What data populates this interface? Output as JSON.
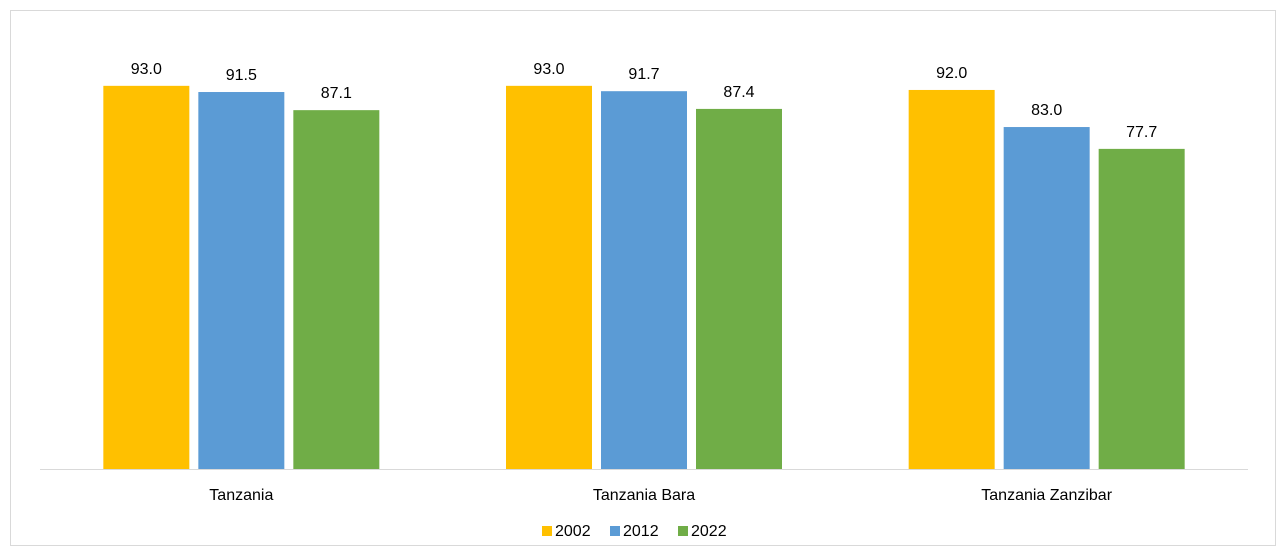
{
  "chart_data": {
    "type": "bar",
    "categories": [
      "Tanzania",
      "Tanzania Bara",
      "Tanzania Zanzibar"
    ],
    "series": [
      {
        "name": "2002",
        "color": "#FFC000",
        "values": [
          93.0,
          93.0,
          92.0
        ]
      },
      {
        "name": "2012",
        "color": "#5B9BD5",
        "values": [
          91.5,
          91.7,
          83.0
        ]
      },
      {
        "name": "2022",
        "color": "#70AD47",
        "values": [
          87.1,
          87.4,
          77.7
        ]
      }
    ],
    "title": "",
    "xlabel": "",
    "ylabel": "",
    "ylim": [
      0,
      100
    ],
    "grid": false,
    "legend_position": "bottom",
    "data_labels": true,
    "value_decimals": 1
  }
}
